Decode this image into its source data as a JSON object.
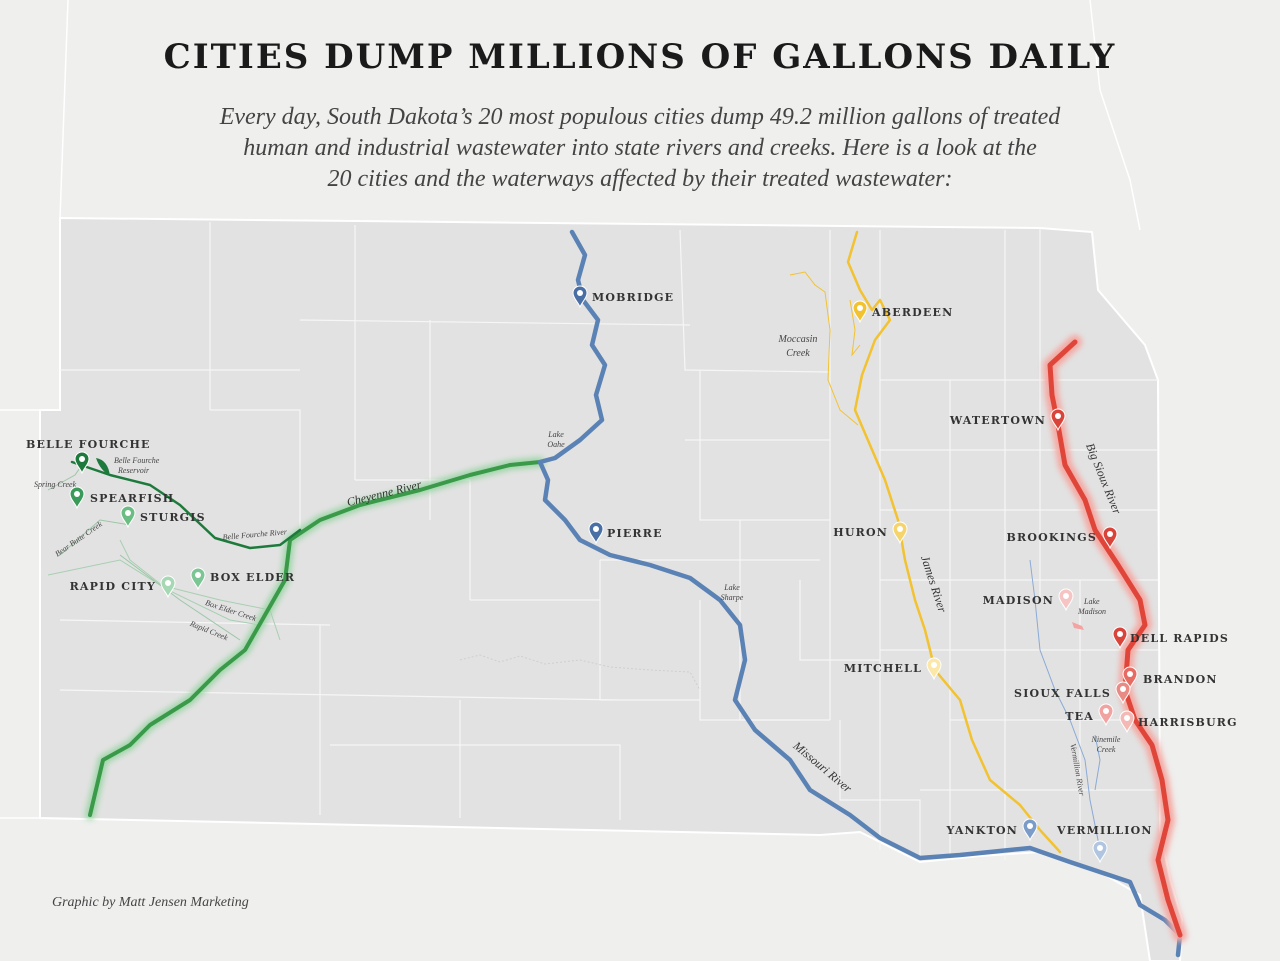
{
  "title": "CITIES DUMP MILLIONS OF GALLONS DAILY",
  "subtitle": [
    "Every day, South Dakota’s 20 most populous cities dump 49.2 million gallons of treated",
    "human and industrial wastewater into state rivers and creeks. Here is a look at the",
    "20 cities and the waterways affected by their treated wastewater:"
  ],
  "cities": [
    {
      "name": "MOBRIDGE",
      "color": "#4a6fa5"
    },
    {
      "name": "ABERDEEN",
      "color": "#f2c230"
    },
    {
      "name": "WATERTOWN",
      "color": "#d9443a"
    },
    {
      "name": "BROOKINGS",
      "color": "#d9443a"
    },
    {
      "name": "MADISON",
      "color": "#f6c4c2"
    },
    {
      "name": "DELL RAPIDS",
      "color": "#d9443a"
    },
    {
      "name": "BRANDON",
      "color": "#e56b63"
    },
    {
      "name": "SIOUX FALLS",
      "color": "#e88b85"
    },
    {
      "name": "TEA",
      "color": "#f0a3a0"
    },
    {
      "name": "HARRISBURG",
      "color": "#f4b8b5"
    },
    {
      "name": "HURON",
      "color": "#f5d56b"
    },
    {
      "name": "MITCHELL",
      "color": "#fbe8a8"
    },
    {
      "name": "YANKTON",
      "color": "#7b9cc9"
    },
    {
      "name": "VERMILLION",
      "color": "#b0c5e0"
    },
    {
      "name": "PIERRE",
      "color": "#4a6fa5"
    },
    {
      "name": "BELLE FOURCHE",
      "color": "#1e7a3c"
    },
    {
      "name": "SPEARFISH",
      "color": "#3a9a5a"
    },
    {
      "name": "STURGIS",
      "color": "#6bbd83"
    },
    {
      "name": "RAPID CITY",
      "color": "#a6d8b3"
    },
    {
      "name": "BOX ELDER",
      "color": "#7cc594"
    }
  ],
  "waterways": {
    "lake_oahe": [
      "Lake",
      "Oahe"
    ],
    "cheyenne_river": "Cheyenne River",
    "belle_fourche_reservoir": [
      "Belle Fourche",
      "Reservoir"
    ],
    "spring_creek": "Spring Creek",
    "bear_butte_creek": "Bear Butte Creek",
    "belle_fourche_river": "Belle Fourche River",
    "box_elder_creek": "Box Elder Creek",
    "rapid_creek": "Rapid Creek",
    "lake_sharpe": [
      "Lake",
      "Sharpe"
    ],
    "missouri_river": "Missouri River",
    "moccasin_creek": [
      "Moccasin",
      "Creek"
    ],
    "james_river": "James River",
    "big_sioux_river": "Big Sioux River",
    "lake_madison": [
      "Lake",
      "Madison"
    ],
    "ninemile_creek": [
      "Ninemile",
      "Creek"
    ],
    "vermillion_river": "Vermillion River"
  },
  "credit": "Graphic by Matt Jensen Marketing"
}
